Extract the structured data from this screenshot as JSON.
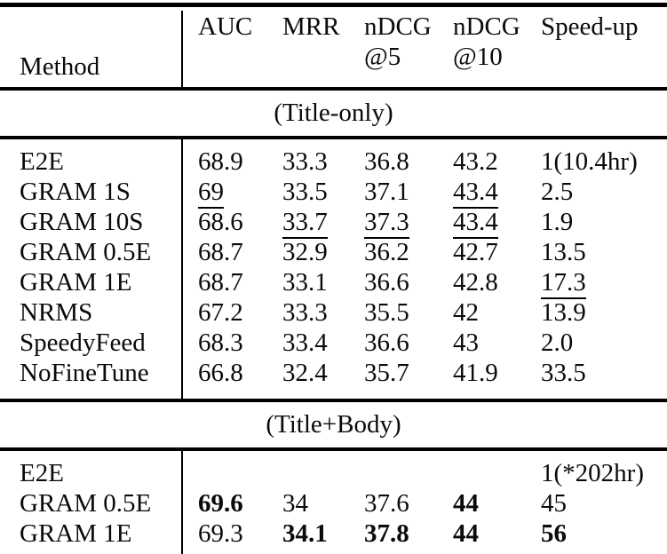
{
  "colors": {
    "background": "#ffffff",
    "text": "#000000",
    "rule": "#000000"
  },
  "table": {
    "header": {
      "method_label": "Method",
      "col_auc": "AUC",
      "col_mrr": "MRR",
      "col_ndcg5_line1": "nDCG",
      "col_ndcg5_line2": "@5",
      "col_ndcg10_line1": "nDCG",
      "col_ndcg10_line2": "@10",
      "col_speedup": "Speed-up"
    },
    "sections": [
      {
        "title": "(Title-only)",
        "rows": [
          {
            "method": "E2E",
            "auc": "68.9",
            "mrr": "33.3",
            "ndcg5": "36.8",
            "ndcg10": "43.2",
            "speedup": "1(10.4hr)"
          },
          {
            "method": "GRAM 1S",
            "auc": "69",
            "mrr": "33.5",
            "ndcg5": "37.1",
            "ndcg10": "43.4",
            "speedup": "2.5"
          },
          {
            "method": "GRAM 10S",
            "auc": "68.6",
            "mrr": "33.7",
            "ndcg5": "37.3",
            "ndcg10": "43.4",
            "speedup": "1.9"
          },
          {
            "method": "GRAM 0.5E",
            "auc": "68.7",
            "mrr": "32.9",
            "ndcg5": "36.2",
            "ndcg10": "42.7",
            "speedup": "13.5"
          },
          {
            "method": "GRAM 1E",
            "auc": "68.7",
            "mrr": "33.1",
            "ndcg5": "36.6",
            "ndcg10": "42.8",
            "speedup": "17.3"
          },
          {
            "method": "NRMS",
            "auc": "67.2",
            "mrr": "33.3",
            "ndcg5": "35.5",
            "ndcg10": "42",
            "speedup": "13.9"
          },
          {
            "method": "SpeedyFeed",
            "auc": "68.3",
            "mrr": "33.4",
            "ndcg5": "36.6",
            "ndcg10": "43",
            "speedup": "2.0"
          },
          {
            "method": "NoFineTune",
            "auc": "66.8",
            "mrr": "32.4",
            "ndcg5": "35.7",
            "ndcg10": "41.9",
            "speedup": "33.5"
          }
        ]
      },
      {
        "title": "(Title+Body)",
        "rows": [
          {
            "method": "E2E",
            "auc": "",
            "mrr": "",
            "ndcg5": "",
            "ndcg10": "",
            "speedup": "1(*202hr)"
          },
          {
            "method": "GRAM 0.5E",
            "auc": "69.6",
            "mrr": "34",
            "ndcg5": "37.6",
            "ndcg10": "44",
            "speedup": "45"
          },
          {
            "method": "GRAM 1E",
            "auc": "69.3",
            "mrr": "34.1",
            "ndcg5": "37.8",
            "ndcg10": "44",
            "speedup": "56"
          }
        ]
      }
    ]
  }
}
